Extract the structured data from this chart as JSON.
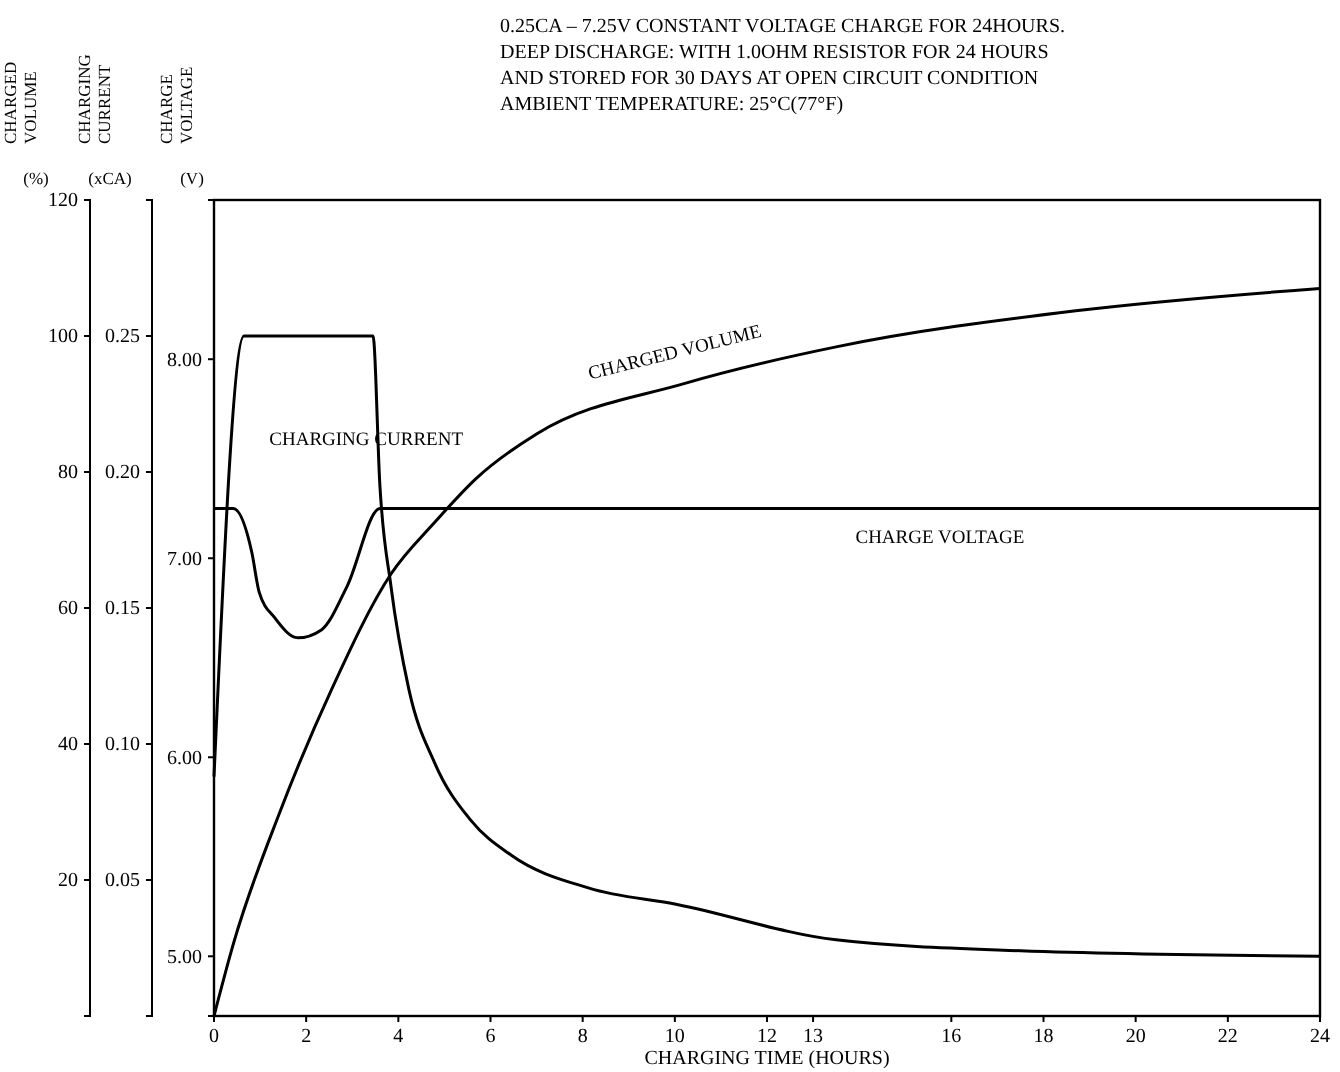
{
  "chart_data": {
    "type": "line",
    "title": "0.25CA – 7.25V CONSTANT VOLTAGE CHARGE FOR 24HOURS.\nDEEP DISCHARGE: WITH 1.0OHM RESISTOR FOR 24 HOURS\nAND STORED FOR 30 DAYS AT OPEN CIRCUIT CONDITION\nAMBIENT TEMPERATURE: 25°C(77°F)",
    "xlabel": "CHARGING TIME (HOURS)",
    "ylabel": "CHARGED VOLUME (%)",
    "y2label": "CHARGING CURRENT (xCA)",
    "y3label": "CHARGE VOLTAGE (V)",
    "xlim": [
      0,
      24
    ],
    "xticks": [
      0,
      2,
      4,
      6,
      8,
      10,
      12,
      13,
      16,
      18,
      20,
      22,
      24
    ],
    "ylim": [
      0,
      120
    ],
    "yticks": [
      20,
      40,
      60,
      80,
      100,
      120
    ],
    "y2lim": [
      0,
      0.3
    ],
    "y2ticks": [
      0.05,
      {
        "value": 0.1,
        "label": "0.10"
      },
      0.15,
      {
        "value": 0.2,
        "label": "0.20"
      },
      0.25
    ],
    "y3lim": [
      4.7,
      8.8
    ],
    "y3ticks": [
      {
        "value": 5,
        "label": "5.00"
      },
      {
        "value": 6,
        "label": "6.00"
      },
      {
        "value": 7,
        "label": "7.00"
      },
      {
        "value": 8,
        "label": "8.00"
      }
    ],
    "marker": "none",
    "line_style": "solid",
    "series": [
      {
        "name": "CHARGED VOLUME",
        "color": "#000000",
        "x": [
          0,
          0.42,
          1.43,
          2.55,
          3.84,
          4.79,
          5.68,
          7.0,
          10.2,
          13.5,
          18.7,
          24
        ],
        "values": [
          0,
          10.6,
          30,
          48,
          65,
          72.6,
          79,
          85.6,
          93,
          98.4,
          103.7,
          107
        ]
      },
      {
        "name": "CHARGING CURRENT",
        "color": "#000000",
        "axis": "y2",
        "x": [
          0,
          0.65,
          3.45,
          3.6,
          3.84,
          4.23,
          4.79,
          5.57,
          6.46,
          8.14,
          10.05,
          13.5,
          17.5,
          24
        ],
        "values": [
          0.088,
          0.25,
          0.25,
          0.195,
          0.158,
          0.12,
          0.093,
          0.072,
          0.059,
          0.047,
          0.041,
          0.028,
          0.024,
          0.022
        ]
      },
      {
        "name": "CHARGE VOLTAGE",
        "color": "#000000",
        "axis": "y3",
        "x": [
          0,
          0.42,
          0.82,
          0.98,
          1.32,
          1.82,
          2.33,
          2.89,
          3.6,
          24
        ],
        "values": [
          7.25,
          7.25,
          7.03,
          6.83,
          6.7,
          6.6,
          6.64,
          6.86,
          7.25,
          7.25
        ]
      }
    ]
  }
}
